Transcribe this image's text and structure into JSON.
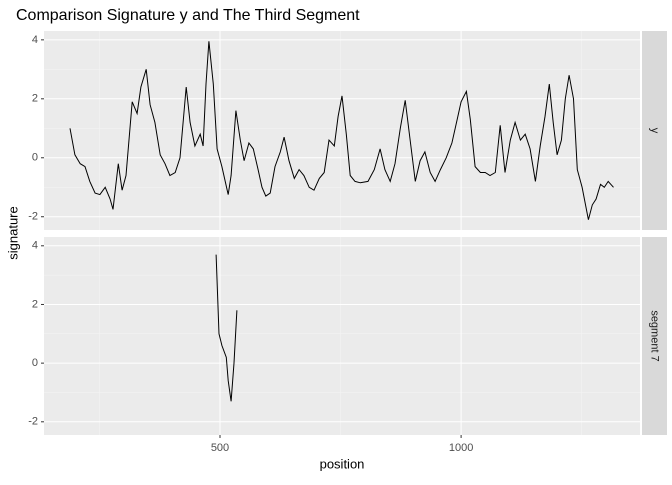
{
  "chart_data": {
    "type": "line",
    "title": "Comparison Signature y and The Third Segment",
    "x_label": "position",
    "y_label": "signature",
    "color": "#000000",
    "xlim": [
      135,
      1371
    ],
    "xticks": [
      500,
      1000
    ],
    "x_minor": [
      250,
      750,
      1250
    ],
    "ylim": [
      -2.45,
      4.3
    ],
    "yticks": [
      -2,
      0,
      2,
      4
    ],
    "y_minor": [
      -1,
      1,
      3
    ],
    "panels": [
      {
        "name": "y",
        "x": [
          189,
          199,
          210,
          220,
          230,
          241,
          251,
          262,
          272,
          278,
          289,
          297,
          305,
          318,
          328,
          336,
          347,
          355,
          365,
          376,
          386,
          396,
          407,
          417,
          430,
          438,
          448,
          459,
          465,
          471,
          477,
          486,
          494,
          504,
          517,
          523,
          533,
          542,
          550,
          560,
          569,
          579,
          587,
          595,
          604,
          614,
          625,
          633,
          643,
          654,
          664,
          674,
          685,
          695,
          706,
          716,
          726,
          737,
          745,
          753,
          762,
          770,
          780,
          791,
          807,
          820,
          832,
          842,
          853,
          863,
          874,
          884,
          895,
          905,
          915,
          925,
          936,
          946,
          957,
          969,
          981,
          992,
          1000,
          1011,
          1019,
          1029,
          1040,
          1050,
          1060,
          1071,
          1081,
          1091,
          1102,
          1112,
          1123,
          1133,
          1143,
          1154,
          1164,
          1174,
          1183,
          1191,
          1199,
          1208,
          1216,
          1224,
          1233,
          1241,
          1251,
          1264,
          1272,
          1280,
          1289,
          1297,
          1305,
          1316
        ],
        "values": [
          1.0,
          0.1,
          -0.2,
          -0.3,
          -0.8,
          -1.2,
          -1.25,
          -1.0,
          -1.4,
          -1.75,
          -0.2,
          -1.1,
          -0.6,
          1.9,
          1.5,
          2.4,
          3.0,
          1.8,
          1.2,
          0.1,
          -0.2,
          -0.6,
          -0.5,
          0.0,
          2.4,
          1.2,
          0.4,
          0.8,
          0.4,
          2.5,
          3.95,
          2.5,
          0.3,
          -0.3,
          -1.25,
          -0.6,
          1.6,
          0.6,
          -0.1,
          0.5,
          0.3,
          -0.4,
          -1.0,
          -1.3,
          -1.2,
          -0.3,
          0.2,
          0.7,
          -0.1,
          -0.7,
          -0.4,
          -0.6,
          -1.0,
          -1.1,
          -0.7,
          -0.5,
          0.6,
          0.4,
          1.4,
          2.1,
          0.8,
          -0.6,
          -0.8,
          -0.85,
          -0.8,
          -0.4,
          0.3,
          -0.4,
          -0.8,
          -0.2,
          1.0,
          1.95,
          0.5,
          -0.8,
          -0.1,
          0.2,
          -0.5,
          -0.8,
          -0.4,
          0.0,
          0.5,
          1.3,
          1.9,
          2.25,
          1.3,
          -0.3,
          -0.5,
          -0.5,
          -0.6,
          -0.5,
          1.1,
          -0.5,
          0.6,
          1.2,
          0.6,
          0.8,
          0.3,
          -0.8,
          0.4,
          1.4,
          2.5,
          1.2,
          0.1,
          0.6,
          2.0,
          2.8,
          2.0,
          -0.4,
          -1.0,
          -2.1,
          -1.6,
          -1.4,
          -0.9,
          -1.0,
          -0.8,
          -1.0
        ]
      },
      {
        "name": "segment 7",
        "x": [
          492,
          498,
          504,
          513,
          517,
          523,
          529,
          535
        ],
        "values": [
          3.7,
          1.0,
          0.6,
          0.2,
          -0.6,
          -1.3,
          0.0,
          1.8
        ]
      }
    ]
  }
}
